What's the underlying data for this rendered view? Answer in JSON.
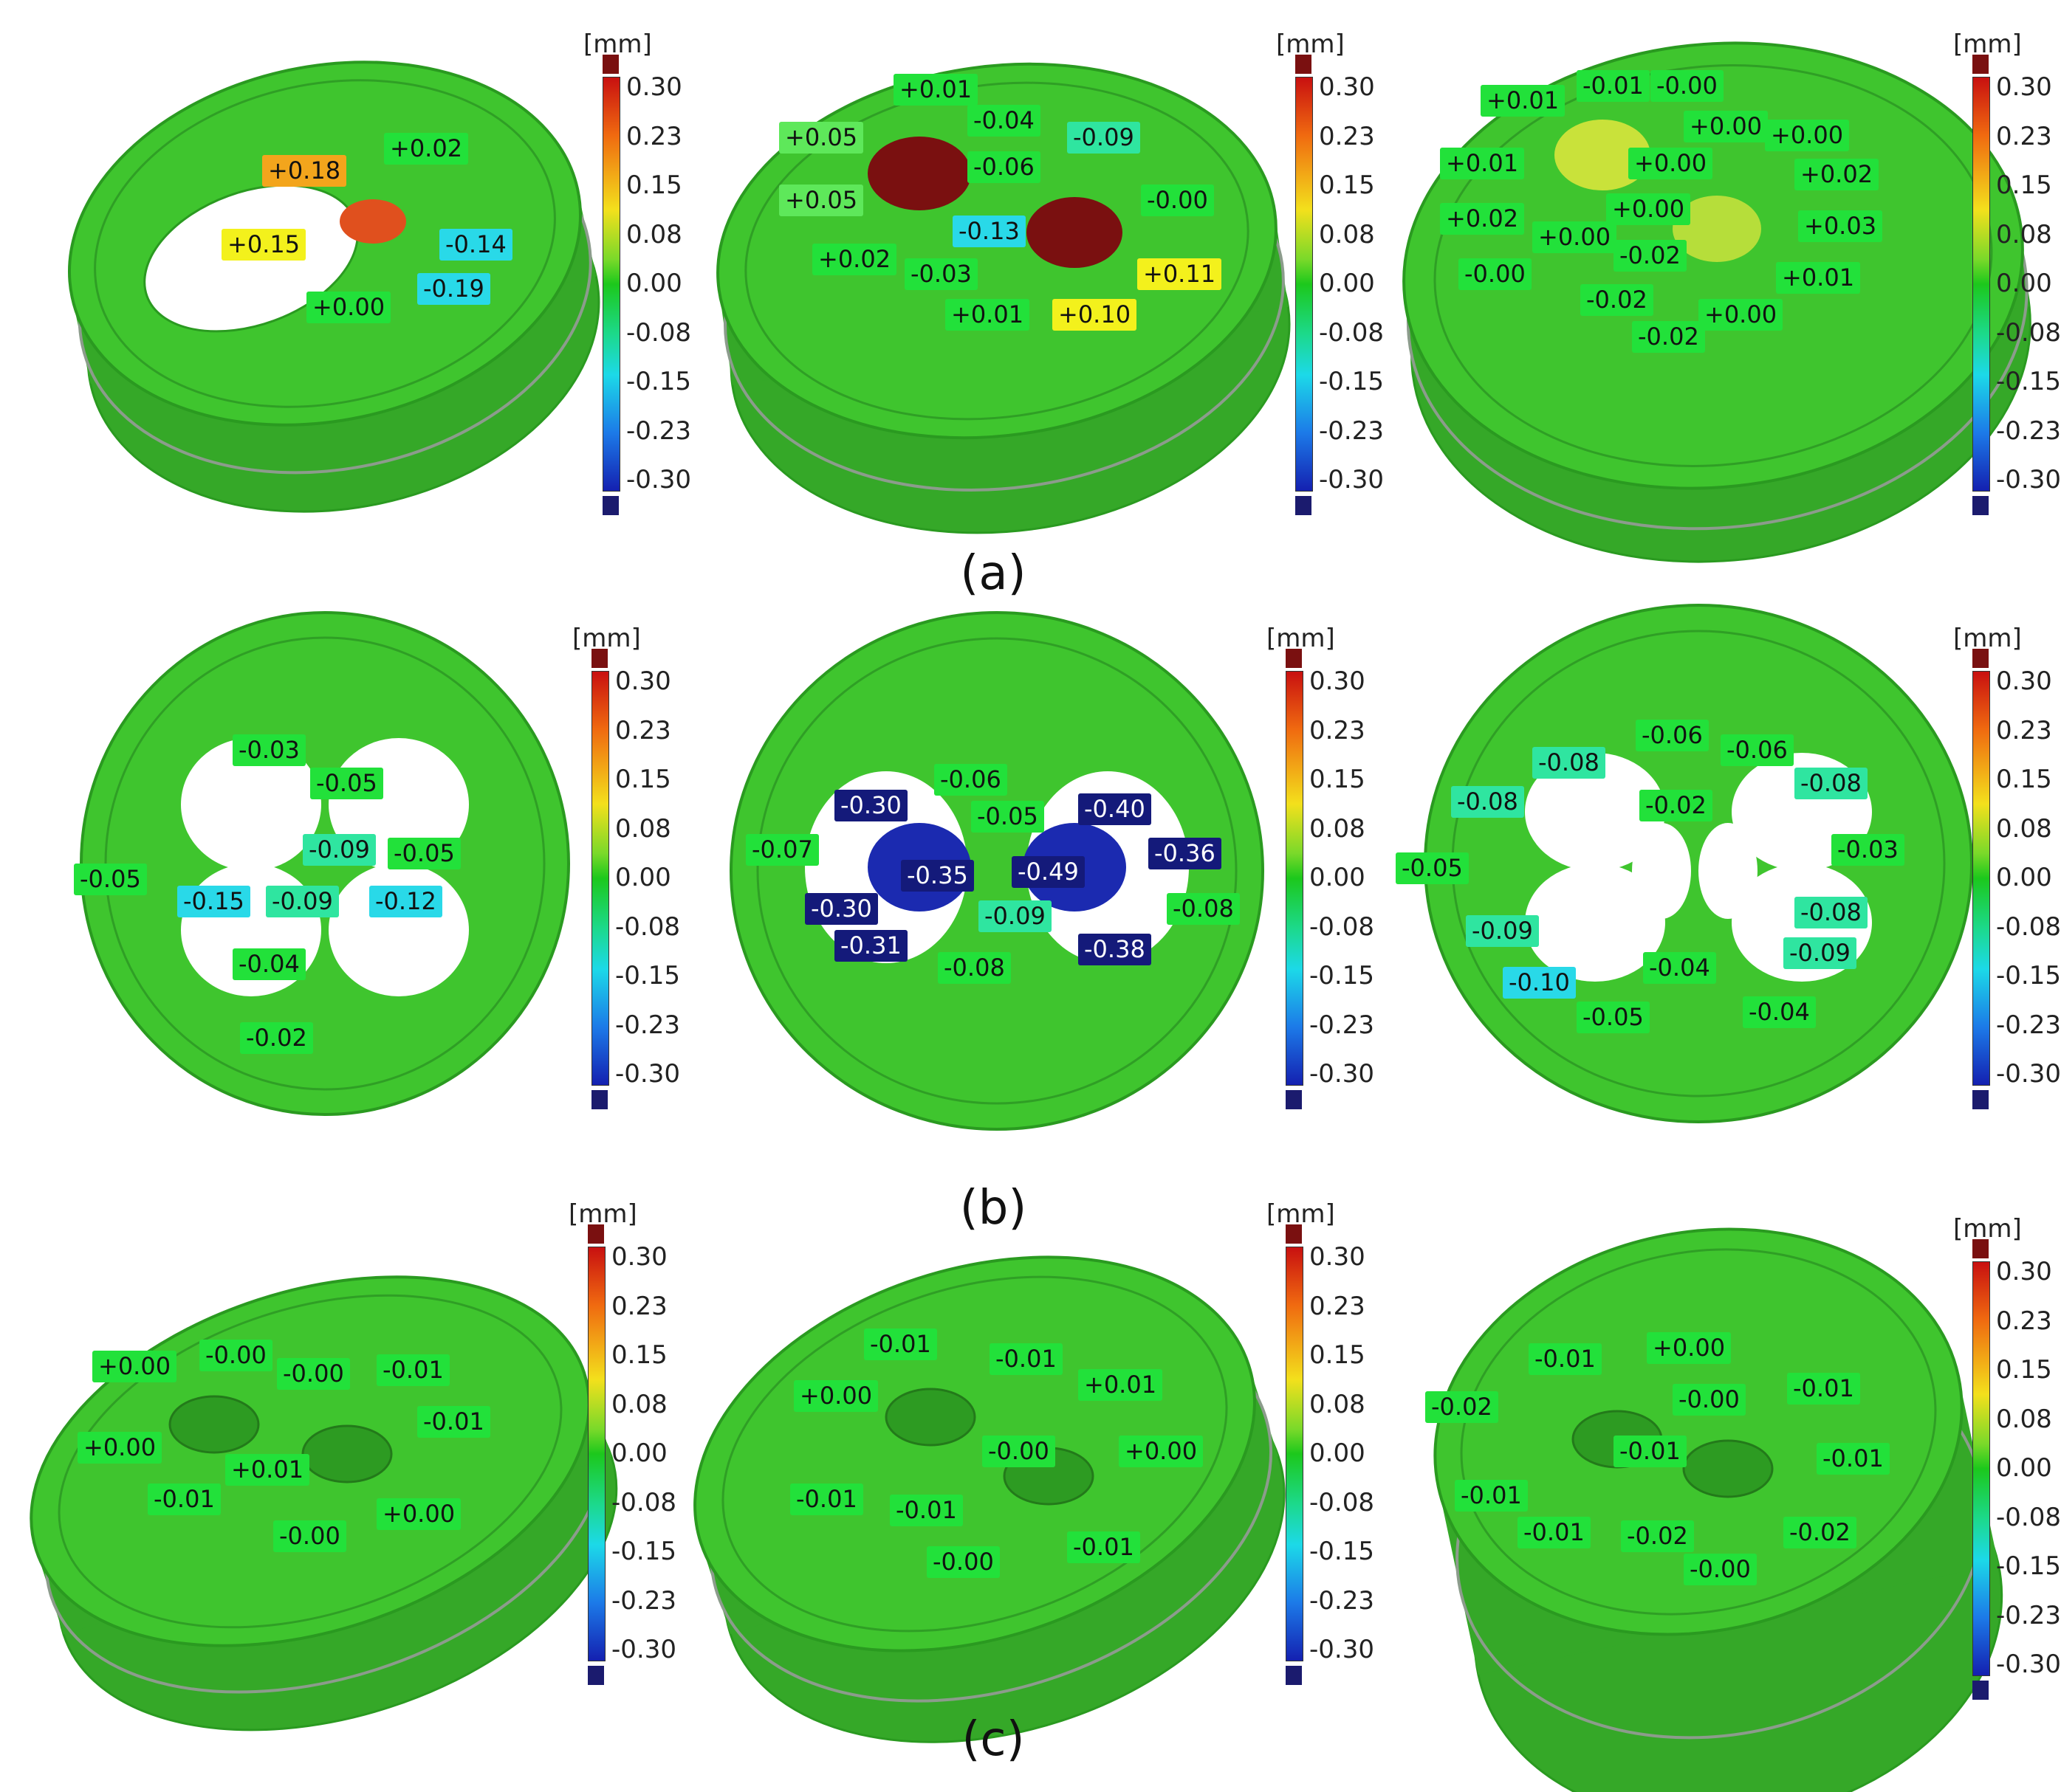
{
  "colors": {
    "background": "#ffffff",
    "part_green": "#3fc52e",
    "part_edge": "#2a9a20",
    "label_green": "#22e13a",
    "label_lightgreen": "#5ee85a",
    "label_teal": "#2fe5a0",
    "label_cyan": "#29d9e8",
    "label_navy": "#141a7a",
    "label_yellow": "#f3f11c",
    "label_orange": "#f3a51c",
    "scale_max": "#7a1010",
    "scale_min": "#1b1b6e"
  },
  "color_scale": {
    "unit": "[mm]",
    "ticks": [
      "0.30",
      "0.23",
      "0.15",
      "0.08",
      "0.00",
      "-0.08",
      "-0.15",
      "-0.23",
      "-0.30"
    ]
  },
  "captions": {
    "a": "(a)",
    "b": "(b)",
    "c": "(c)"
  },
  "panels": [
    {
      "id": "a1",
      "callouts": [
        {
          "text": "+0.18",
          "color": "label_orange"
        },
        {
          "text": "+0.02",
          "color": "label_green"
        },
        {
          "text": "+0.15",
          "color": "label_yellow"
        },
        {
          "text": "-0.14",
          "color": "label_cyan"
        },
        {
          "text": "-0.19",
          "color": "label_cyan"
        },
        {
          "text": "+0.00",
          "color": "label_green"
        }
      ]
    },
    {
      "id": "a2",
      "callouts": [
        {
          "text": "+0.01",
          "color": "label_green"
        },
        {
          "text": "+0.05",
          "color": "label_lightgreen"
        },
        {
          "text": "-0.04",
          "color": "label_green"
        },
        {
          "text": "-0.09",
          "color": "label_teal"
        },
        {
          "text": "-0.06",
          "color": "label_green"
        },
        {
          "text": "+0.05",
          "color": "label_lightgreen"
        },
        {
          "text": "-0.00",
          "color": "label_green"
        },
        {
          "text": "-0.13",
          "color": "label_cyan"
        },
        {
          "text": "+0.02",
          "color": "label_green"
        },
        {
          "text": "-0.03",
          "color": "label_green"
        },
        {
          "text": "+0.11",
          "color": "label_yellow"
        },
        {
          "text": "+0.01",
          "color": "label_green"
        },
        {
          "text": "+0.10",
          "color": "label_yellow"
        }
      ]
    },
    {
      "id": "a3",
      "callouts": [
        {
          "text": "+0.01",
          "color": "label_green"
        },
        {
          "text": "-0.01",
          "color": "label_green"
        },
        {
          "text": "-0.00",
          "color": "label_green"
        },
        {
          "text": "+0.00",
          "color": "label_green"
        },
        {
          "text": "+0.00",
          "color": "label_green"
        },
        {
          "text": "+0.01",
          "color": "label_green"
        },
        {
          "text": "+0.00",
          "color": "label_green"
        },
        {
          "text": "+0.02",
          "color": "label_green"
        },
        {
          "text": "+0.00",
          "color": "label_green"
        },
        {
          "text": "+0.02",
          "color": "label_green"
        },
        {
          "text": "+0.00",
          "color": "label_green"
        },
        {
          "text": "-0.02",
          "color": "label_green"
        },
        {
          "text": "+0.03",
          "color": "label_green"
        },
        {
          "text": "-0.00",
          "color": "label_green"
        },
        {
          "text": "+0.01",
          "color": "label_green"
        },
        {
          "text": "-0.02",
          "color": "label_green"
        },
        {
          "text": "+0.00",
          "color": "label_green"
        },
        {
          "text": "-0.02",
          "color": "label_green"
        }
      ]
    },
    {
      "id": "b1",
      "callouts": [
        {
          "text": "-0.03",
          "color": "label_green"
        },
        {
          "text": "-0.05",
          "color": "label_green"
        },
        {
          "text": "-0.09",
          "color": "label_teal"
        },
        {
          "text": "-0.05",
          "color": "label_green"
        },
        {
          "text": "-0.05",
          "color": "label_green"
        },
        {
          "text": "-0.15",
          "color": "label_cyan"
        },
        {
          "text": "-0.09",
          "color": "label_teal"
        },
        {
          "text": "-0.12",
          "color": "label_cyan"
        },
        {
          "text": "-0.04",
          "color": "label_green"
        },
        {
          "text": "-0.02",
          "color": "label_green"
        }
      ]
    },
    {
      "id": "b2",
      "callouts": [
        {
          "text": "-0.06",
          "color": "label_green"
        },
        {
          "text": "-0.30",
          "color": "label_navy"
        },
        {
          "text": "-0.05",
          "color": "label_green"
        },
        {
          "text": "-0.40",
          "color": "label_navy"
        },
        {
          "text": "-0.07",
          "color": "label_green"
        },
        {
          "text": "-0.36",
          "color": "label_navy"
        },
        {
          "text": "-0.35",
          "color": "label_navy"
        },
        {
          "text": "-0.49",
          "color": "label_navy"
        },
        {
          "text": "-0.30",
          "color": "label_navy"
        },
        {
          "text": "-0.09",
          "color": "label_teal"
        },
        {
          "text": "-0.08",
          "color": "label_green"
        },
        {
          "text": "-0.31",
          "color": "label_navy"
        },
        {
          "text": "-0.38",
          "color": "label_navy"
        },
        {
          "text": "-0.08",
          "color": "label_green"
        }
      ]
    },
    {
      "id": "b3",
      "callouts": [
        {
          "text": "-0.06",
          "color": "label_green"
        },
        {
          "text": "-0.08",
          "color": "label_teal"
        },
        {
          "text": "-0.06",
          "color": "label_green"
        },
        {
          "text": "-0.08",
          "color": "label_teal"
        },
        {
          "text": "-0.02",
          "color": "label_green"
        },
        {
          "text": "-0.08",
          "color": "label_teal"
        },
        {
          "text": "-0.03",
          "color": "label_green"
        },
        {
          "text": "-0.05",
          "color": "label_green"
        },
        {
          "text": "-0.08",
          "color": "label_teal"
        },
        {
          "text": "-0.09",
          "color": "label_teal"
        },
        {
          "text": "-0.09",
          "color": "label_teal"
        },
        {
          "text": "-0.10",
          "color": "label_cyan"
        },
        {
          "text": "-0.04",
          "color": "label_green"
        },
        {
          "text": "-0.05",
          "color": "label_green"
        },
        {
          "text": "-0.04",
          "color": "label_green"
        }
      ]
    },
    {
      "id": "c1",
      "callouts": [
        {
          "text": "+0.00",
          "color": "label_green"
        },
        {
          "text": "-0.00",
          "color": "label_green"
        },
        {
          "text": "-0.00",
          "color": "label_green"
        },
        {
          "text": "-0.01",
          "color": "label_green"
        },
        {
          "text": "-0.01",
          "color": "label_green"
        },
        {
          "text": "+0.00",
          "color": "label_green"
        },
        {
          "text": "+0.01",
          "color": "label_green"
        },
        {
          "text": "-0.01",
          "color": "label_green"
        },
        {
          "text": "-0.00",
          "color": "label_green"
        },
        {
          "text": "+0.00",
          "color": "label_green"
        }
      ]
    },
    {
      "id": "c2",
      "callouts": [
        {
          "text": "-0.01",
          "color": "label_green"
        },
        {
          "text": "-0.01",
          "color": "label_green"
        },
        {
          "text": "+0.01",
          "color": "label_green"
        },
        {
          "text": "+0.00",
          "color": "label_green"
        },
        {
          "text": "-0.00",
          "color": "label_green"
        },
        {
          "text": "+0.00",
          "color": "label_green"
        },
        {
          "text": "-0.01",
          "color": "label_green"
        },
        {
          "text": "-0.01",
          "color": "label_green"
        },
        {
          "text": "-0.00",
          "color": "label_green"
        },
        {
          "text": "-0.01",
          "color": "label_green"
        }
      ]
    },
    {
      "id": "c3",
      "callouts": [
        {
          "text": "-0.01",
          "color": "label_green"
        },
        {
          "text": "+0.00",
          "color": "label_green"
        },
        {
          "text": "-0.02",
          "color": "label_green"
        },
        {
          "text": "-0.00",
          "color": "label_green"
        },
        {
          "text": "-0.01",
          "color": "label_green"
        },
        {
          "text": "-0.01",
          "color": "label_green"
        },
        {
          "text": "-0.01",
          "color": "label_green"
        },
        {
          "text": "-0.01",
          "color": "label_green"
        },
        {
          "text": "-0.02",
          "color": "label_green"
        },
        {
          "text": "-0.01",
          "color": "label_green"
        },
        {
          "text": "-0.02",
          "color": "label_green"
        },
        {
          "text": "-0.00",
          "color": "label_green"
        }
      ]
    }
  ]
}
